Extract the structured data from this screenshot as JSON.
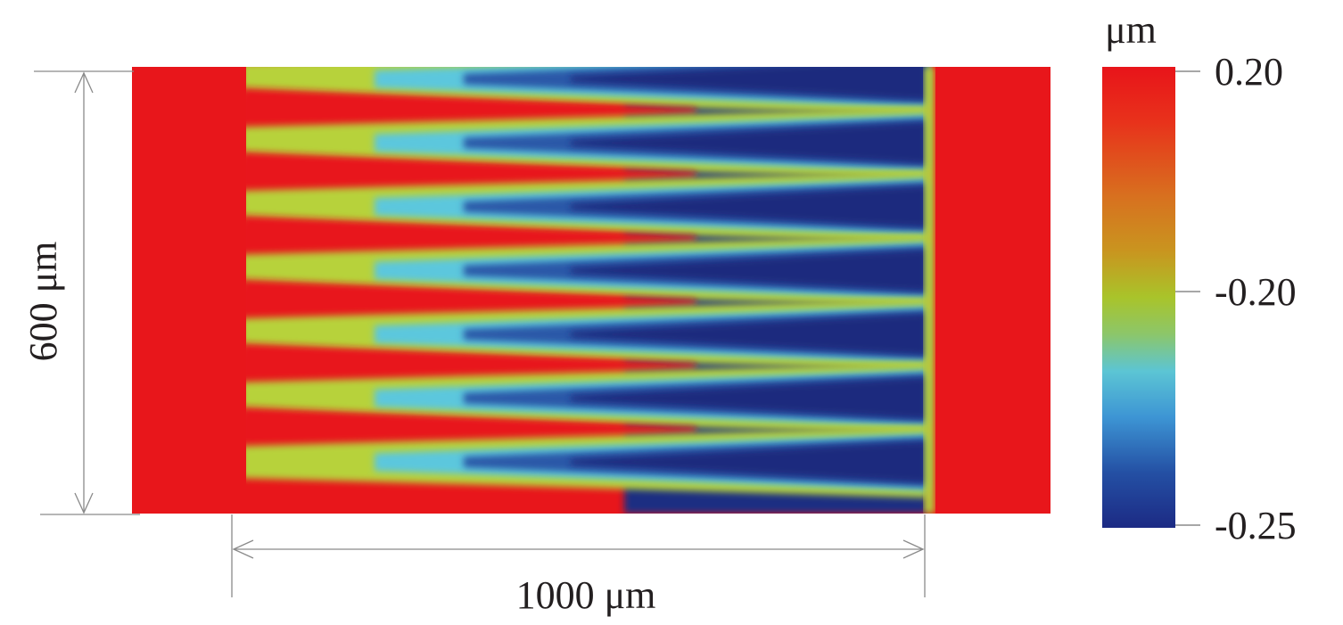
{
  "chart_data": {
    "type": "heatmap",
    "description_units": "surface height",
    "colorbar": {
      "unit": "μm",
      "ticks": [
        "0.20",
        "-0.20",
        "-0.25"
      ],
      "tick_values": [
        0.2,
        -0.2,
        -0.25
      ],
      "range": [
        -0.25,
        0.2
      ],
      "colors_top_to_bottom": [
        "#e8141a",
        "#e64a1c",
        "#d4791f",
        "#b9b21d",
        "#a8c62a",
        "#7ec57a",
        "#58c4d8",
        "#3a8fd0",
        "#244fa3",
        "#1e2b86"
      ]
    },
    "scale_bars": {
      "height_label": "600 μm",
      "width_label": "1000 μm"
    },
    "map": {
      "stripe_count": 7,
      "left_band_value": 0.2,
      "right_band_value": 0.2,
      "stripe_tip_value": -0.25
    },
    "colors": {
      "red": "#e8161b",
      "yellow_green": "#b7d23a",
      "cyan": "#5bc7dd",
      "blue": "#2a58a8",
      "navy": "#1a2a7e",
      "ink": "#231f20",
      "dim_line": "#8a8a8a"
    }
  }
}
